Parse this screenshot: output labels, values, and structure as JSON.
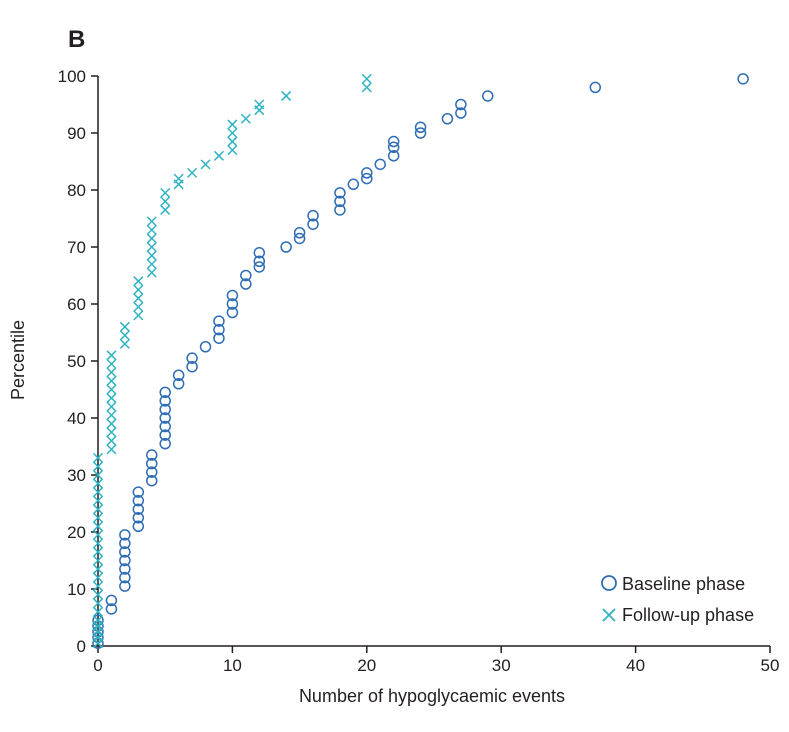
{
  "chart_data": {
    "type": "scatter",
    "panel_label": "B",
    "title": "",
    "xlabel": "Number of hypoglycaemic events",
    "ylabel": "Percentile",
    "xlim": [
      0,
      50
    ],
    "ylim": [
      0,
      100
    ],
    "x_ticks": [
      0,
      10,
      20,
      30,
      40,
      50
    ],
    "y_ticks": [
      0,
      10,
      20,
      30,
      40,
      50,
      60,
      70,
      80,
      90,
      100
    ],
    "grid": false,
    "legend_position": "bottom-right",
    "colors": {
      "baseline": "#2f6db5",
      "followup": "#2fb3c2",
      "axis": "#231f20"
    },
    "series": [
      {
        "name": "Baseline phase",
        "marker": "circle",
        "points": [
          [
            0,
            0.5
          ],
          [
            0,
            1.5
          ],
          [
            0,
            2.5
          ],
          [
            0,
            3.5
          ],
          [
            0,
            4.5
          ],
          [
            1,
            6.5
          ],
          [
            1,
            8
          ],
          [
            2,
            10.5
          ],
          [
            2,
            12
          ],
          [
            2,
            13.5
          ],
          [
            2,
            15
          ],
          [
            2,
            16.5
          ],
          [
            2,
            18
          ],
          [
            2,
            19.5
          ],
          [
            3,
            21
          ],
          [
            3,
            22.5
          ],
          [
            3,
            24
          ],
          [
            3,
            25.5
          ],
          [
            3,
            27
          ],
          [
            4,
            29
          ],
          [
            4,
            30.5
          ],
          [
            4,
            32
          ],
          [
            4,
            33.5
          ],
          [
            5,
            35.5
          ],
          [
            5,
            37
          ],
          [
            5,
            38.5
          ],
          [
            5,
            40
          ],
          [
            5,
            41.5
          ],
          [
            5,
            43
          ],
          [
            5,
            44.5
          ],
          [
            6,
            46
          ],
          [
            6,
            47.5
          ],
          [
            7,
            49
          ],
          [
            7,
            50.5
          ],
          [
            8,
            52.5
          ],
          [
            9,
            54
          ],
          [
            9,
            55.5
          ],
          [
            9,
            57
          ],
          [
            10,
            58.5
          ],
          [
            10,
            60
          ],
          [
            10,
            61.5
          ],
          [
            11,
            63.5
          ],
          [
            11,
            65
          ],
          [
            12,
            66.5
          ],
          [
            12,
            67.5
          ],
          [
            12,
            69
          ],
          [
            14,
            70
          ],
          [
            15,
            71.5
          ],
          [
            15,
            72.5
          ],
          [
            16,
            74
          ],
          [
            16,
            75.5
          ],
          [
            18,
            76.5
          ],
          [
            18,
            78
          ],
          [
            18,
            79.5
          ],
          [
            19,
            81
          ],
          [
            20,
            82
          ],
          [
            20,
            83
          ],
          [
            21,
            84.5
          ],
          [
            22,
            86
          ],
          [
            22,
            87.5
          ],
          [
            22,
            88.5
          ],
          [
            24,
            90
          ],
          [
            24,
            91
          ],
          [
            26,
            92.5
          ],
          [
            27,
            93.5
          ],
          [
            27,
            95
          ],
          [
            29,
            96.5
          ],
          [
            37,
            98
          ],
          [
            48,
            99.5
          ]
        ]
      },
      {
        "name": "Follow-up phase",
        "marker": "cross",
        "points": [
          [
            0,
            0.5
          ],
          [
            0,
            1.5
          ],
          [
            0,
            2.5
          ],
          [
            0,
            3.5
          ],
          [
            0,
            4.5
          ],
          [
            0,
            6
          ],
          [
            0,
            7.5
          ],
          [
            0,
            9
          ],
          [
            0,
            10.5
          ],
          [
            0,
            12
          ],
          [
            0,
            13.5
          ],
          [
            0,
            15
          ],
          [
            0,
            16.5
          ],
          [
            0,
            18
          ],
          [
            0,
            19.5
          ],
          [
            0,
            21
          ],
          [
            0,
            22.5
          ],
          [
            0,
            24
          ],
          [
            0,
            25.5
          ],
          [
            0,
            27
          ],
          [
            0,
            28.5
          ],
          [
            0,
            30
          ],
          [
            0,
            31.5
          ],
          [
            0,
            33
          ],
          [
            1,
            34.5
          ],
          [
            1,
            36
          ],
          [
            1,
            37.5
          ],
          [
            1,
            39
          ],
          [
            1,
            40.5
          ],
          [
            1,
            42
          ],
          [
            1,
            43.5
          ],
          [
            1,
            45
          ],
          [
            1,
            46.5
          ],
          [
            1,
            48
          ],
          [
            1,
            49.5
          ],
          [
            1,
            51
          ],
          [
            2,
            53
          ],
          [
            2,
            54.5
          ],
          [
            2,
            56
          ],
          [
            3,
            58
          ],
          [
            3,
            59.5
          ],
          [
            3,
            61
          ],
          [
            3,
            62.5
          ],
          [
            3,
            64
          ],
          [
            4,
            65.5
          ],
          [
            4,
            67
          ],
          [
            4,
            68.5
          ],
          [
            4,
            70
          ],
          [
            4,
            71.5
          ],
          [
            4,
            73
          ],
          [
            4,
            74.5
          ],
          [
            5,
            76.5
          ],
          [
            5,
            78
          ],
          [
            5,
            79.5
          ],
          [
            6,
            81
          ],
          [
            6,
            82
          ],
          [
            7,
            83
          ],
          [
            8,
            84.5
          ],
          [
            9,
            86
          ],
          [
            10,
            87
          ],
          [
            10,
            88.5
          ],
          [
            10,
            90
          ],
          [
            10,
            91.5
          ],
          [
            11,
            92.5
          ],
          [
            12,
            94
          ],
          [
            12,
            95
          ],
          [
            14,
            96.5
          ],
          [
            20,
            98
          ],
          [
            20,
            99.5
          ]
        ]
      }
    ]
  }
}
